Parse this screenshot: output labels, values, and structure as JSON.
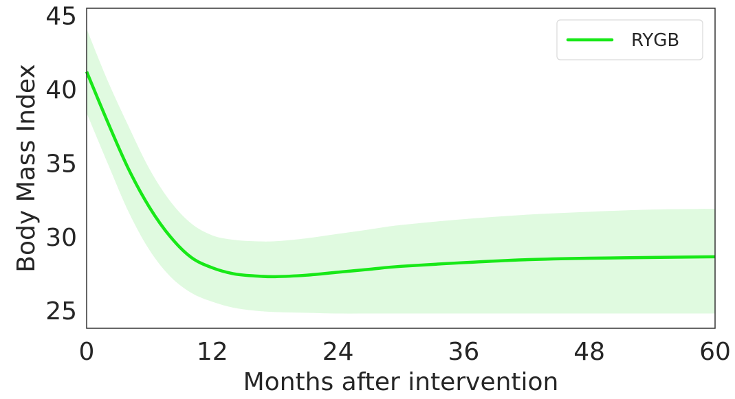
{
  "chart_data": {
    "type": "line",
    "title": "",
    "xlabel": "Months after intervention",
    "ylabel": "Body Mass Index",
    "xlim": [
      0,
      60
    ],
    "ylim": [
      23.8,
      45.5
    ],
    "xticks": [
      0,
      12,
      24,
      36,
      48,
      60
    ],
    "yticks": [
      25,
      30,
      35,
      40,
      45
    ],
    "grid": false,
    "legend_position": "top-right",
    "series": [
      {
        "name": "RYGB",
        "color": "#18e818",
        "band_color": "#e0fae0",
        "x": [
          0,
          2,
          4,
          6,
          8,
          10,
          12,
          14,
          16,
          18,
          21,
          24,
          27,
          30,
          36,
          42,
          48,
          54,
          60
        ],
        "y": [
          41.2,
          37.8,
          34.6,
          32.0,
          30.0,
          28.6,
          27.9,
          27.5,
          27.35,
          27.3,
          27.4,
          27.6,
          27.8,
          28.0,
          28.25,
          28.45,
          28.55,
          28.6,
          28.65
        ],
        "lower": [
          38.4,
          35.0,
          31.7,
          29.1,
          27.3,
          26.2,
          25.6,
          25.2,
          25.0,
          24.9,
          24.85,
          24.8,
          24.8,
          24.8,
          24.8,
          24.8,
          24.8,
          24.8,
          24.8
        ],
        "upper": [
          44.1,
          40.6,
          37.5,
          34.6,
          32.4,
          30.9,
          30.1,
          29.8,
          29.7,
          29.7,
          29.9,
          30.2,
          30.5,
          30.8,
          31.2,
          31.5,
          31.7,
          31.85,
          31.9
        ]
      }
    ]
  }
}
